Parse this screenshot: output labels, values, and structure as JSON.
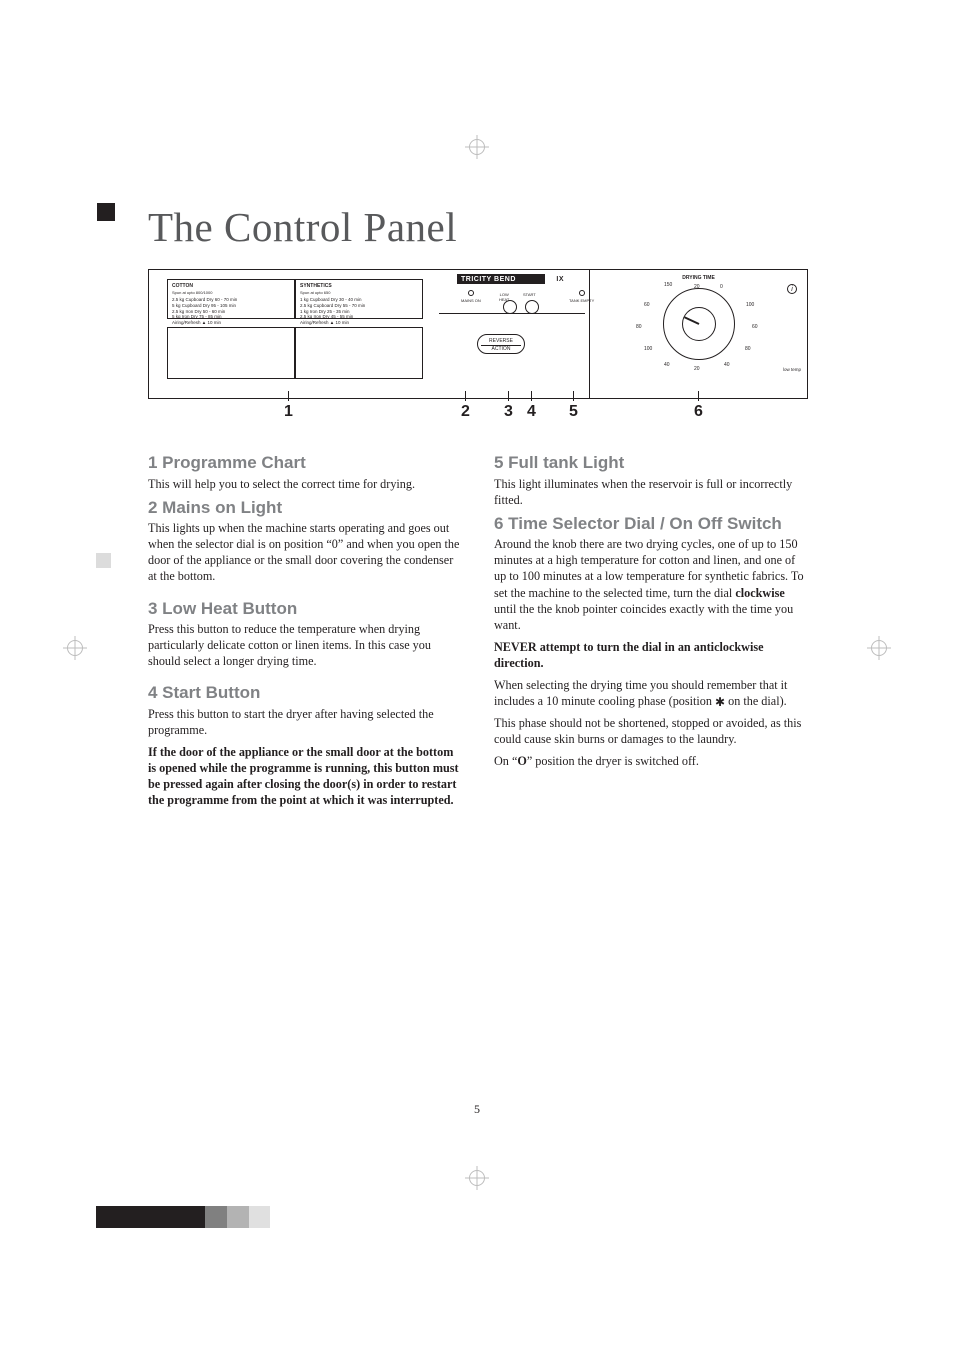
{
  "title": "The Control Panel",
  "pageNumber": "5",
  "panel": {
    "brand": "TRICITY BEND",
    "brand_suffix": "IX",
    "cotton": {
      "heading": "COTTON",
      "sub": "Spun at upto 800/1000",
      "rows": [
        "2.5 kg  Cupboard Dry   60 - 70 min",
        "5   kg  Cupboard Dry   95 - 105 min",
        "2.5 kg  Iron Dry       50 - 60 min",
        "5   kg  Iron Dry       75 - 85 min",
        "         Airing/Refresh  ▲ 10  min"
      ]
    },
    "synth": {
      "heading": "SYNTHETICS",
      "sub": "Spun at upto 650",
      "rows": [
        "1   kg  Cupboard Dry   30 - 40 min",
        "2.5 kg  Cupboard Dry   55 - 70 min",
        "1   kg  Iron Dry       25 - 35 min",
        "2.5 kg  Iron Dry       45 - 55 min",
        "         Airing/Refresh  ▲ 10  min"
      ]
    },
    "labels": {
      "mains": "MAINS ON",
      "low": "LOW\nHEAT",
      "start": "START",
      "tank": "TANK EMPTY",
      "reverse_l1": "REVERSE",
      "reverse_l2": "ACTION",
      "dial_title": "DRYING TIME",
      "lowheat_note": "low temp"
    },
    "dial_ticks": [
      "150",
      "20",
      "0",
      "100",
      "60",
      "80",
      "60",
      "100",
      "80",
      "40",
      "20",
      "40"
    ],
    "info": "i"
  },
  "callouts": [
    "1",
    "2",
    "3",
    "4",
    "5",
    "6"
  ],
  "sections": {
    "s1": {
      "h": "1 Programme Chart",
      "p": "This will help you to select the correct time for drying."
    },
    "s2": {
      "h": "2 Mains on Light",
      "p": "This lights up when the machine starts operating and goes out when the selector dial is on position “0” and when you open the door of the appliance or the small door covering the condenser at the bottom."
    },
    "s3": {
      "h": "3 Low Heat Button",
      "p": "Press this button to reduce the temperature when drying particularly delicate cotton or linen items. In this case you should select a longer drying time."
    },
    "s4": {
      "h": "4 Start Button",
      "p1": "Press this button to start the dryer after having selected the programme.",
      "p2": "If the door of the appliance or the small door at the bottom is opened while the programme is running, this button must be pressed again after closing the door(s) in order to restart the programme from the point at which it was interrupted."
    },
    "s5": {
      "h": "5 Full tank Light",
      "p": "This light illuminates when the reservoir is full or incorrectly fitted."
    },
    "s6": {
      "h": "6 Time Selector Dial / On Off Switch",
      "p1": "Around the knob there are two drying cycles, one of up to 150 minutes at a high temperature for cotton and linen, and one of up to 100 minutes at a low temperature for synthetic fabrics. To set the machine to the selected time, turn the dial clockwise until the the knob pointer coincides exactly with the time you want.",
      "p2": "NEVER attempt to turn the dial in an anticlockwise direction.",
      "p3a": "When selecting the drying time you should remember that it includes a 10 minute cooling phase (position ",
      "p3b": " on the dial).",
      "p4": "This phase should not be shortened, stopped or avoided, as this could cause skin burns or damages to the laundry.",
      "p5": "On “O” position the dryer is switched off."
    }
  }
}
